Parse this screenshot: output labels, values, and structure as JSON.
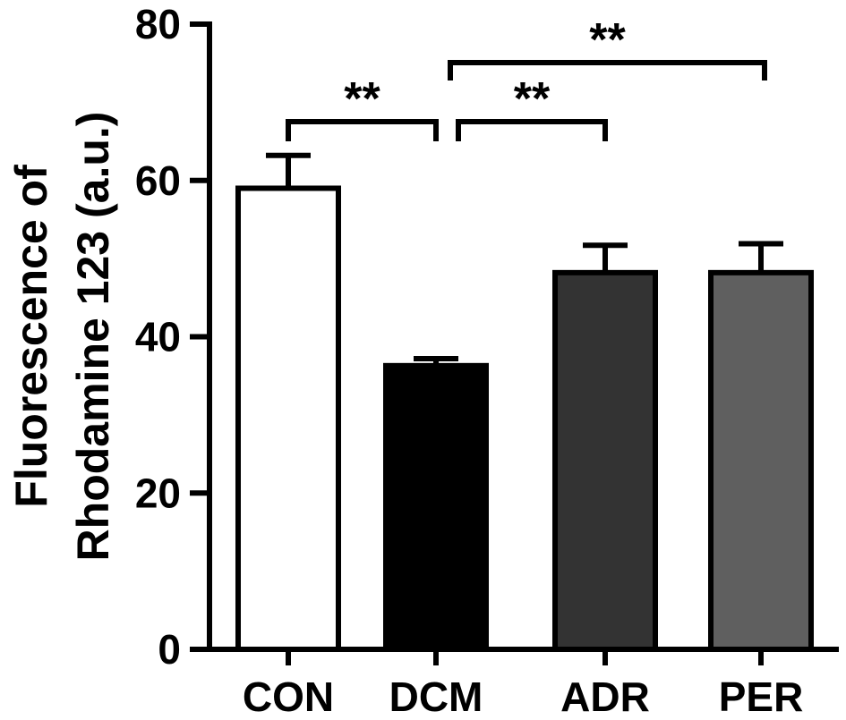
{
  "chart_data": {
    "type": "bar",
    "title": "",
    "xlabel": "",
    "ylabel_lines": [
      "Fluorescence of",
      "Rhodamine 123 (a.u.)"
    ],
    "ylim": [
      0,
      80
    ],
    "yticks": [
      0,
      20,
      40,
      60,
      80
    ],
    "categories": [
      "CON",
      "DCM",
      "ADR",
      "PER"
    ],
    "values": [
      59,
      36.3,
      48.2,
      48.2
    ],
    "errors": [
      4.2,
      0.9,
      3.5,
      3.7
    ],
    "colors": [
      "#ffffff",
      "#000000",
      "#333333",
      "#5f5f5f"
    ],
    "grid": false,
    "significance": [
      {
        "from": "CON",
        "to": "DCM",
        "label": "**"
      },
      {
        "from": "DCM",
        "to": "ADR",
        "label": "**"
      },
      {
        "from": "DCM",
        "to": "PER",
        "label": "**"
      }
    ]
  }
}
